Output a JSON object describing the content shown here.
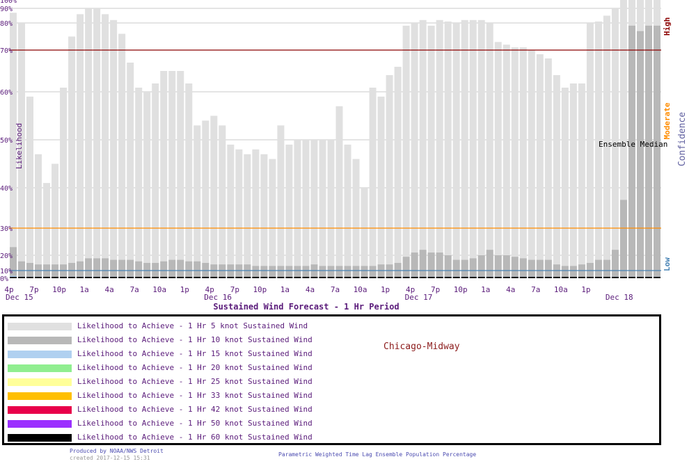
{
  "chart_data": {
    "type": "bar",
    "title": "Sustained Wind Forecast -  1 Hr Period",
    "ylabel": "Likelihood",
    "y_ticks": [
      "0%",
      "10%",
      "20%",
      "30%",
      "40%",
      "50%",
      "60%",
      "70%",
      "80%",
      "90%",
      "100%"
    ],
    "ylim": [
      0,
      100
    ],
    "y_scale": "nonlinear",
    "confidence_label": "Confidence",
    "confidence_levels": [
      {
        "label": "High",
        "value": 70,
        "color": "#8b0000"
      },
      {
        "label": "Moderate",
        "value": 30,
        "color": "#ff8c00"
      },
      {
        "label": "Low",
        "value": 10,
        "color": "#4682b4"
      }
    ],
    "ensemble_median_label": "Ensemble Median",
    "x_tick_labels": [
      "4p",
      "7p",
      "10p",
      "1a",
      "4a",
      "7a",
      "10a",
      "1p",
      "4p",
      "7p",
      "10p",
      "1a",
      "4a",
      "7a",
      "10a",
      "1p",
      "4p",
      "7p",
      "10p",
      "1a",
      "4a",
      "7a",
      "10a",
      "1p"
    ],
    "date_labels": [
      "Dec 15",
      "Dec 16",
      "Dec 17",
      "Dec 18"
    ],
    "grid": true,
    "series": [
      {
        "name": "Likelihood to Achieve -  1 Hr 5 knot Sustained Wind",
        "color": "#e0e0e0",
        "values": [
          87,
          80,
          59,
          47,
          41,
          45,
          61,
          75,
          86,
          90,
          90,
          86,
          82,
          76,
          67,
          61,
          60,
          62,
          65,
          65,
          65,
          62,
          53,
          54,
          55,
          53,
          49,
          48,
          47,
          48,
          47,
          46,
          53,
          49,
          50,
          50,
          50,
          50,
          50,
          57,
          49,
          46,
          40,
          61,
          59,
          64,
          66,
          79,
          80,
          82,
          79,
          82,
          81,
          80,
          82,
          82,
          82,
          80,
          73,
          72,
          71,
          71,
          70,
          69,
          68,
          64,
          61,
          62,
          62,
          80,
          81,
          85,
          90,
          100,
          100,
          100,
          100,
          100
        ],
        "visible_truncated_min_x": 0
      },
      {
        "name": "Likelihood to Achieve -  1 Hr 10 knot Sustained Wind",
        "color": "#b8b8b8",
        "values": [
          23,
          16,
          15,
          14,
          14,
          14,
          14,
          15,
          16,
          18,
          18,
          18,
          17,
          17,
          17,
          16,
          15,
          15,
          16,
          17,
          17,
          16,
          16,
          15,
          14,
          14,
          14,
          14,
          14,
          13,
          13,
          13,
          13,
          13,
          13,
          13,
          14,
          13,
          13,
          13,
          13,
          13,
          13,
          13,
          14,
          14,
          15,
          19,
          21,
          22,
          21,
          21,
          20,
          17,
          17,
          18,
          20,
          22,
          20,
          20,
          19,
          18,
          17,
          17,
          17,
          14,
          13,
          13,
          14,
          15,
          17,
          17,
          22,
          37,
          79,
          77,
          79,
          79
        ]
      },
      {
        "name": "Likelihood to Achieve -  1 Hr 15 knot Sustained Wind",
        "color": "#b0d0f0",
        "values": [
          3,
          2,
          2,
          2,
          1,
          1,
          1,
          2,
          2,
          2,
          2,
          2,
          2,
          2,
          2,
          1,
          1,
          1,
          1,
          1,
          1,
          1,
          1,
          1,
          1,
          1,
          1,
          1,
          1,
          1,
          1,
          1,
          1,
          1,
          1,
          1,
          1,
          1,
          1,
          1,
          1,
          1,
          1,
          1,
          1,
          1,
          1,
          2,
          2,
          2,
          2,
          2,
          2,
          2,
          2,
          2,
          2,
          2,
          2,
          2,
          2,
          2,
          2,
          2,
          2,
          1,
          1,
          1,
          1,
          1,
          1,
          1,
          2,
          2,
          2,
          2,
          2,
          2
        ]
      },
      {
        "name": "Likelihood to Achieve -  1 Hr 20 knot Sustained Wind",
        "color": "#90ee90",
        "values": []
      },
      {
        "name": "Likelihood to Achieve -  1 Hr 25 knot Sustained Wind",
        "color": "#ffff99",
        "values": []
      },
      {
        "name": "Likelihood to Achieve -  1 Hr 33 knot Sustained Wind",
        "color": "#ffbf00",
        "values": []
      },
      {
        "name": "Likelihood to Achieve -  1 Hr 42 knot Sustained Wind",
        "color": "#e8004a",
        "values": []
      },
      {
        "name": "Likelihood to Achieve -  1 Hr 50 knot Sustained Wind",
        "color": "#9b30ff",
        "values": []
      },
      {
        "name": "Likelihood to Achieve -  1 Hr 60 knot Sustained Wind",
        "color": "#000000",
        "values": []
      }
    ]
  },
  "legend": {
    "items": [
      {
        "label": "Likelihood to Achieve -  1 Hr 5 knot Sustained Wind",
        "color": "#e0e0e0"
      },
      {
        "label": "Likelihood to Achieve -  1 Hr 10 knot Sustained Wind",
        "color": "#b8b8b8"
      },
      {
        "label": "Likelihood to Achieve -  1 Hr 15 knot Sustained Wind",
        "color": "#b0d0f0"
      },
      {
        "label": "Likelihood to Achieve -  1 Hr 20 knot Sustained Wind",
        "color": "#90ee90"
      },
      {
        "label": "Likelihood to Achieve -  1 Hr 25 knot Sustained Wind",
        "color": "#ffff99"
      },
      {
        "label": "Likelihood to Achieve -  1 Hr 33 knot Sustained Wind",
        "color": "#ffbf00"
      },
      {
        "label": "Likelihood to Achieve -  1 Hr 42 knot Sustained Wind",
        "color": "#e8004a"
      },
      {
        "label": "Likelihood to Achieve -  1 Hr 50 knot Sustained Wind",
        "color": "#9b30ff"
      },
      {
        "label": "Likelihood to Achieve -  1 Hr 60 knot Sustained Wind",
        "color": "#000000"
      }
    ],
    "station": "Chicago-Midway"
  },
  "footer": {
    "produced": "Produced by NOAA/NWS Detroit",
    "created": "created 2017-12-15 15:31",
    "note": "Parametric Weighted Time Lag Ensemble Population Percentage"
  },
  "colors": {
    "text_purple": "#5a1b7a",
    "ensemble_median_line": "#000000"
  }
}
